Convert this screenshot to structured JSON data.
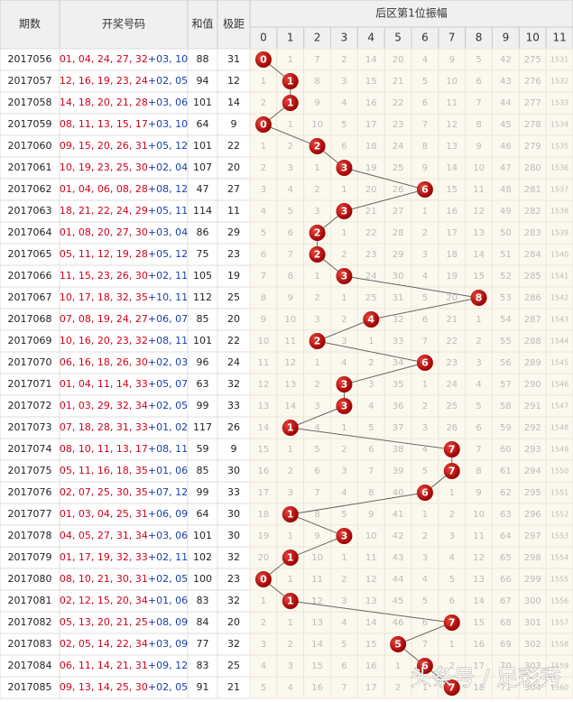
{
  "header": {
    "period": "期数",
    "numbers": "开奖号码",
    "sum": "和值",
    "span": "极距",
    "group": "后区第1位振幅",
    "columns": [
      0,
      1,
      2,
      3,
      4,
      5,
      6,
      7,
      8,
      9,
      10,
      11
    ]
  },
  "rows": [
    {
      "period": "2017056",
      "front": "01, 04, 24, 27, 32",
      "back": "+03, 10",
      "sum": 88,
      "span": 31,
      "amp": 0,
      "cells": [
        null,
        1,
        7,
        2,
        14,
        20,
        4,
        9,
        5,
        42,
        275,
        1531
      ]
    },
    {
      "period": "2017057",
      "front": "12, 16, 19, 23, 24",
      "back": "+02, 05",
      "sum": 94,
      "span": 12,
      "amp": 1,
      "cells": [
        1,
        null,
        8,
        3,
        15,
        21,
        5,
        10,
        6,
        43,
        276,
        1532
      ]
    },
    {
      "period": "2017058",
      "front": "14, 18, 20, 21, 28",
      "back": "+03, 06",
      "sum": 101,
      "span": 14,
      "amp": 1,
      "cells": [
        2,
        null,
        9,
        4,
        16,
        22,
        6,
        11,
        7,
        44,
        277,
        1533
      ]
    },
    {
      "period": "2017059",
      "front": "08, 11, 13, 15, 17",
      "back": "+03, 10",
      "sum": 64,
      "span": 9,
      "amp": 0,
      "cells": [
        null,
        1,
        10,
        5,
        17,
        23,
        7,
        12,
        8,
        45,
        278,
        1534
      ]
    },
    {
      "period": "2017060",
      "front": "09, 15, 20, 26, 31",
      "back": "+05, 12",
      "sum": 101,
      "span": 22,
      "amp": 2,
      "cells": [
        1,
        2,
        null,
        6,
        18,
        24,
        8,
        13,
        9,
        46,
        279,
        1535
      ]
    },
    {
      "period": "2017061",
      "front": "10, 19, 23, 25, 30",
      "back": "+02, 04",
      "sum": 107,
      "span": 20,
      "amp": 3,
      "cells": [
        2,
        3,
        1,
        null,
        19,
        25,
        9,
        14,
        10,
        47,
        280,
        1536
      ]
    },
    {
      "period": "2017062",
      "front": "01, 04, 06, 08, 28",
      "back": "+08, 12",
      "sum": 47,
      "span": 27,
      "amp": 6,
      "cells": [
        3,
        4,
        2,
        1,
        20,
        26,
        null,
        15,
        11,
        48,
        281,
        1537
      ]
    },
    {
      "period": "2017063",
      "front": "18, 21, 22, 24, 29",
      "back": "+05, 11",
      "sum": 114,
      "span": 11,
      "amp": 3,
      "cells": [
        4,
        5,
        3,
        null,
        21,
        27,
        1,
        16,
        12,
        49,
        282,
        1538
      ]
    },
    {
      "period": "2017064",
      "front": "01, 08, 20, 27, 30",
      "back": "+03, 04",
      "sum": 86,
      "span": 29,
      "amp": 2,
      "cells": [
        5,
        6,
        null,
        1,
        22,
        28,
        2,
        17,
        13,
        50,
        283,
        1539
      ]
    },
    {
      "period": "2017065",
      "front": "05, 11, 12, 19, 28",
      "back": "+05, 12",
      "sum": 75,
      "span": 23,
      "amp": 2,
      "cells": [
        6,
        7,
        null,
        2,
        23,
        29,
        3,
        18,
        14,
        51,
        284,
        1540
      ]
    },
    {
      "period": "2017066",
      "front": "11, 15, 23, 26, 30",
      "back": "+02, 11",
      "sum": 105,
      "span": 19,
      "amp": 3,
      "cells": [
        7,
        8,
        1,
        null,
        24,
        30,
        4,
        19,
        15,
        52,
        285,
        1541
      ]
    },
    {
      "period": "2017067",
      "front": "10, 17, 18, 32, 35",
      "back": "+10, 11",
      "sum": 112,
      "span": 25,
      "amp": 8,
      "cells": [
        8,
        9,
        2,
        1,
        25,
        31,
        5,
        20,
        null,
        53,
        286,
        1542
      ]
    },
    {
      "period": "2017068",
      "front": "07, 08, 19, 24, 27",
      "back": "+06, 07",
      "sum": 85,
      "span": 20,
      "amp": 4,
      "cells": [
        9,
        10,
        3,
        2,
        null,
        32,
        6,
        21,
        1,
        54,
        287,
        1543
      ]
    },
    {
      "period": "2017069",
      "front": "10, 16, 20, 23, 32",
      "back": "+08, 11",
      "sum": 101,
      "span": 22,
      "amp": 2,
      "cells": [
        10,
        11,
        null,
        3,
        1,
        33,
        7,
        22,
        2,
        55,
        288,
        1544
      ]
    },
    {
      "period": "2017070",
      "front": "06, 16, 18, 26, 30",
      "back": "+02, 03",
      "sum": 96,
      "span": 24,
      "amp": 6,
      "cells": [
        11,
        12,
        1,
        4,
        2,
        34,
        null,
        23,
        3,
        56,
        289,
        1545
      ]
    },
    {
      "period": "2017071",
      "front": "01, 04, 11, 14, 33",
      "back": "+05, 07",
      "sum": 63,
      "span": 32,
      "amp": 3,
      "cells": [
        12,
        13,
        2,
        null,
        3,
        35,
        1,
        24,
        4,
        57,
        290,
        1546
      ]
    },
    {
      "period": "2017072",
      "front": "01, 03, 29, 32, 34",
      "back": "+02, 05",
      "sum": 99,
      "span": 33,
      "amp": 3,
      "cells": [
        13,
        14,
        3,
        null,
        4,
        36,
        2,
        25,
        5,
        58,
        291,
        1547
      ]
    },
    {
      "period": "2017073",
      "front": "07, 18, 28, 31, 33",
      "back": "+01, 02",
      "sum": 117,
      "span": 26,
      "amp": 1,
      "cells": [
        14,
        null,
        4,
        1,
        5,
        37,
        3,
        26,
        6,
        59,
        292,
        1548
      ]
    },
    {
      "period": "2017074",
      "front": "08, 10, 11, 13, 17",
      "back": "+08, 11",
      "sum": 59,
      "span": 9,
      "amp": 7,
      "cells": [
        15,
        1,
        5,
        2,
        6,
        38,
        4,
        null,
        7,
        60,
        293,
        1549
      ]
    },
    {
      "period": "2017075",
      "front": "05, 11, 16, 18, 35",
      "back": "+01, 06",
      "sum": 85,
      "span": 30,
      "amp": 7,
      "cells": [
        16,
        2,
        6,
        3,
        7,
        39,
        5,
        null,
        8,
        61,
        294,
        1550
      ]
    },
    {
      "period": "2017076",
      "front": "02, 07, 25, 30, 35",
      "back": "+07, 12",
      "sum": 99,
      "span": 33,
      "amp": 6,
      "cells": [
        17,
        3,
        7,
        4,
        8,
        40,
        null,
        1,
        9,
        62,
        295,
        1551
      ]
    },
    {
      "period": "2017077",
      "front": "01, 03, 04, 25, 31",
      "back": "+06, 09",
      "sum": 64,
      "span": 30,
      "amp": 1,
      "cells": [
        18,
        null,
        8,
        5,
        9,
        41,
        1,
        2,
        10,
        63,
        296,
        1552
      ]
    },
    {
      "period": "2017078",
      "front": "04, 05, 27, 31, 34",
      "back": "+03, 06",
      "sum": 101,
      "span": 30,
      "amp": 3,
      "cells": [
        19,
        1,
        9,
        null,
        10,
        42,
        2,
        3,
        11,
        64,
        297,
        1553
      ]
    },
    {
      "period": "2017079",
      "front": "01, 17, 19, 32, 33",
      "back": "+02, 11",
      "sum": 102,
      "span": 32,
      "amp": 1,
      "cells": [
        20,
        null,
        10,
        1,
        11,
        43,
        3,
        4,
        12,
        65,
        298,
        1554
      ]
    },
    {
      "period": "2017080",
      "front": "08, 10, 21, 30, 31",
      "back": "+02, 05",
      "sum": 100,
      "span": 23,
      "amp": 0,
      "cells": [
        null,
        1,
        11,
        2,
        12,
        44,
        4,
        5,
        13,
        66,
        299,
        1555
      ]
    },
    {
      "period": "2017081",
      "front": "02, 12, 15, 20, 34",
      "back": "+01, 06",
      "sum": 83,
      "span": 32,
      "amp": 1,
      "cells": [
        1,
        null,
        12,
        3,
        13,
        45,
        5,
        6,
        14,
        67,
        300,
        1556
      ]
    },
    {
      "period": "2017082",
      "front": "05, 13, 20, 21, 25",
      "back": "+08, 09",
      "sum": 84,
      "span": 20,
      "amp": 7,
      "cells": [
        2,
        1,
        13,
        4,
        14,
        46,
        6,
        null,
        15,
        68,
        301,
        1557
      ]
    },
    {
      "period": "2017083",
      "front": "02, 05, 14, 22, 34",
      "back": "+03, 09",
      "sum": 77,
      "span": 32,
      "amp": 5,
      "cells": [
        3,
        2,
        14,
        5,
        15,
        null,
        7,
        1,
        16,
        69,
        302,
        1558
      ]
    },
    {
      "period": "2017084",
      "front": "06, 11, 14, 21, 31",
      "back": "+09, 12",
      "sum": 83,
      "span": 25,
      "amp": 6,
      "cells": [
        4,
        3,
        15,
        6,
        16,
        1,
        null,
        2,
        17,
        70,
        303,
        1559
      ]
    },
    {
      "period": "2017085",
      "front": "09, 13, 14, 25, 30",
      "back": "+02, 05",
      "sum": 91,
      "span": 21,
      "amp": 7,
      "cells": [
        5,
        4,
        16,
        7,
        17,
        2,
        1,
        null,
        18,
        71,
        304,
        1560
      ]
    }
  ],
  "watermark": "头条号 / 足彩秀"
}
